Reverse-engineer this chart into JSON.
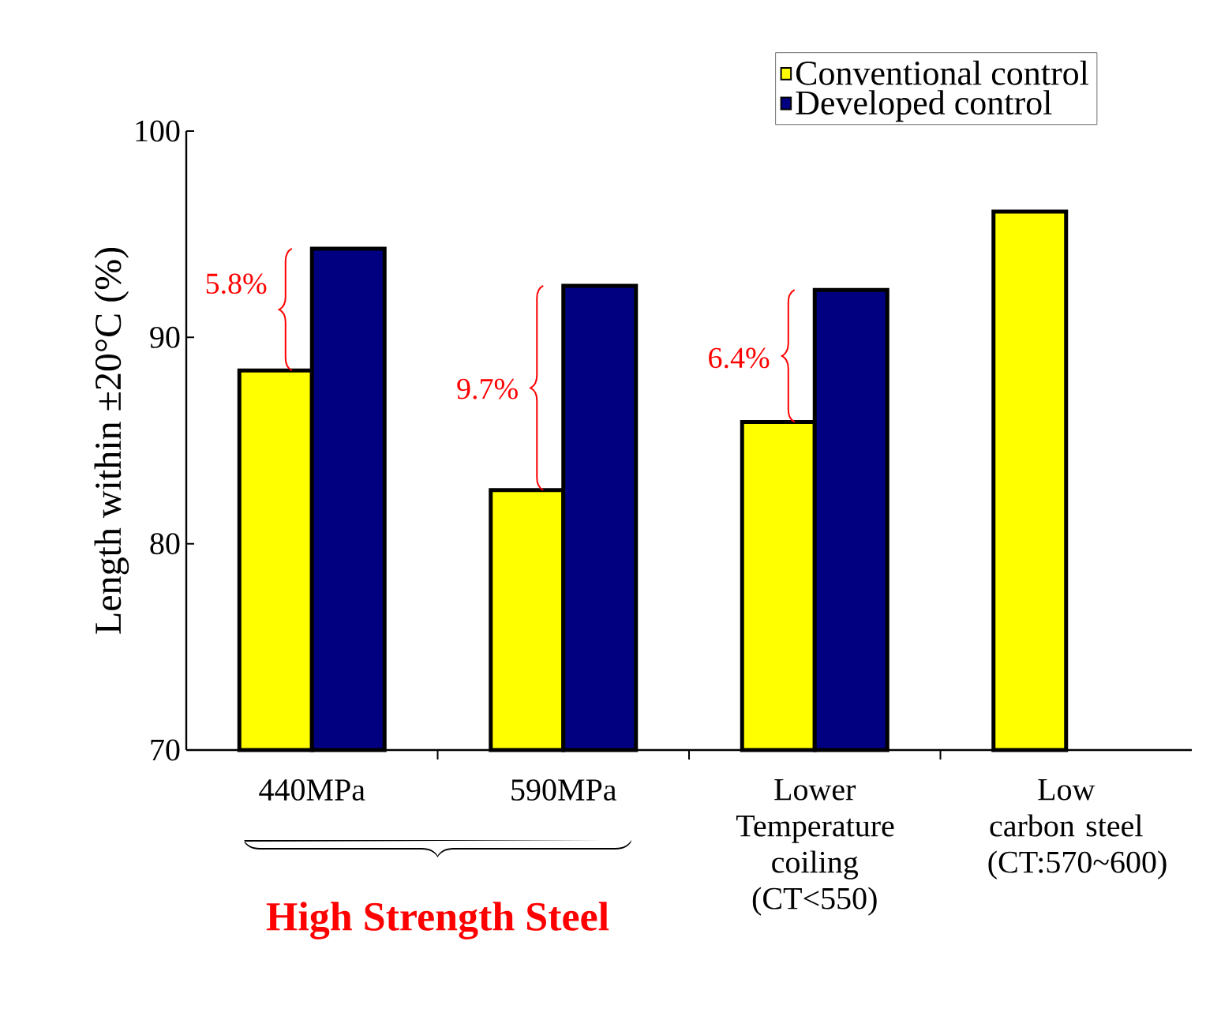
{
  "chart_data": {
    "type": "bar",
    "ylabel": "Length within ±20°C (%)",
    "categories": [
      "440MPa",
      "590MPa",
      "Lower Temperature coiling (CT<550)",
      "Low carbon steel (CT:570~600)"
    ],
    "series": [
      {
        "name": "Conventional control",
        "color": "#ffff00",
        "values": [
          88.4,
          82.6,
          85.9,
          96.1
        ]
      },
      {
        "name": "Developed control",
        "color": "#000080",
        "values": [
          94.3,
          92.5,
          92.3,
          null
        ]
      }
    ],
    "ylim": [
      70,
      100
    ],
    "yticks": [
      70,
      80,
      90,
      100
    ],
    "legend": "top right",
    "grid": false,
    "annotations": [
      {
        "text": "5.8%",
        "x": "440MPa",
        "y": 92.6
      },
      {
        "text": "9.7%",
        "x": "590MPa",
        "y": 87.5
      },
      {
        "text": "6.4%",
        "x": "Lower Temperature coiling (CT<550)",
        "y": 89.0
      },
      "High Strength Steel"
    ]
  }
}
